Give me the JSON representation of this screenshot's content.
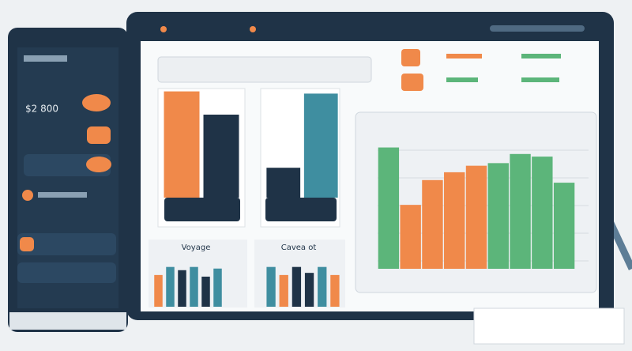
{
  "sidebar": {
    "amount": "$2 800"
  },
  "panels": [
    {
      "label": "Voyage"
    },
    {
      "label": "Cavea ot"
    }
  ],
  "feature_charts": [
    {
      "type": "bar",
      "ylim": [
        0,
        100
      ],
      "values": [
        96,
        75
      ],
      "colors": [
        "#f0894a",
        "#1f3347"
      ]
    },
    {
      "type": "bar",
      "ylim": [
        0,
        100
      ],
      "values": [
        27,
        94
      ],
      "colors": [
        "#1f3347",
        "#3f8ea0"
      ]
    }
  ],
  "main_chart": {
    "type": "bar",
    "ylim": [
      0,
      100
    ],
    "values": [
      93,
      49,
      68,
      74,
      79,
      81,
      88,
      86,
      66
    ],
    "colors": [
      "#5cb57a",
      "#f0894a",
      "#f0894a",
      "#f0894a",
      "#f0894a",
      "#5cb57a",
      "#5cb57a",
      "#5cb57a",
      "#5cb57a"
    ]
  },
  "mini_charts": [
    {
      "type": "bar",
      "ylim": [
        0,
        100
      ],
      "values": [
        59,
        74,
        68,
        74,
        56,
        71
      ],
      "colors": [
        "#f0894a",
        "#3f8ea0",
        "#1f3347",
        "#3f8ea0",
        "#1f3347",
        "#3f8ea0"
      ]
    },
    {
      "type": "bar",
      "ylim": [
        0,
        100
      ],
      "values": [
        74,
        59,
        74,
        63,
        74,
        59
      ],
      "colors": [
        "#3f8ea0",
        "#f0894a",
        "#1f3347",
        "#1f3347",
        "#3f8ea0",
        "#f0894a"
      ]
    }
  ]
}
